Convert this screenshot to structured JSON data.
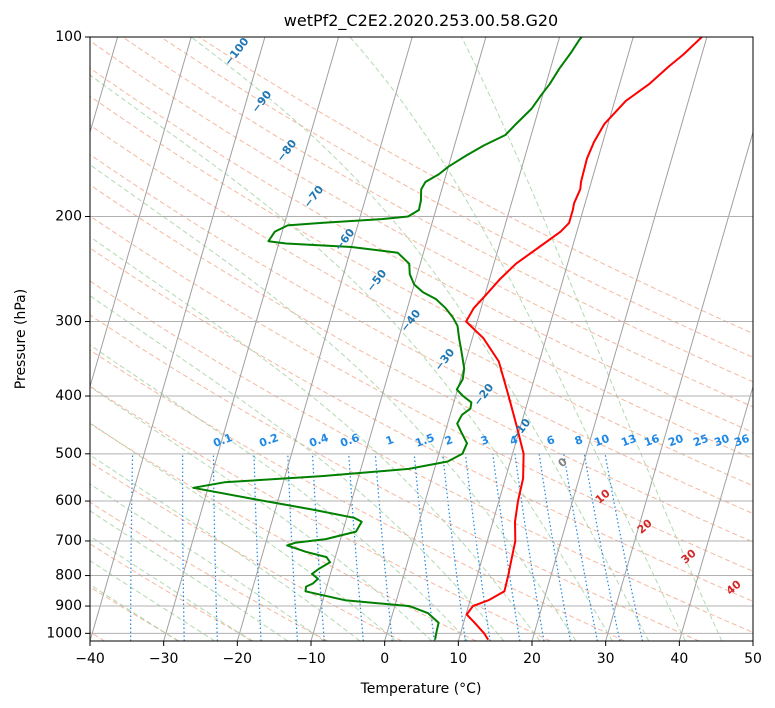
{
  "chart_data": {
    "type": "line",
    "title": "wetPf2_C2E2.2020.253.00.58.G20",
    "xlabel": "Temperature (°C)",
    "ylabel": "Pressure (hPa)",
    "xlim": [
      -40,
      50
    ],
    "ylim": [
      1030,
      100
    ],
    "y_scale": "log",
    "grid": true,
    "x_ticks": [
      -40,
      -30,
      -20,
      -10,
      0,
      10,
      20,
      30,
      40,
      50
    ],
    "y_ticks": [
      100,
      200,
      300,
      400,
      500,
      600,
      700,
      800,
      900,
      1000
    ],
    "x_tick_labels": [
      "−40",
      "−30",
      "−20",
      "−10",
      "0",
      "10",
      "20",
      "30",
      "40",
      "50"
    ],
    "y_tick_labels": [
      "100",
      "200",
      "300",
      "400",
      "500",
      "600",
      "700",
      "800",
      "900",
      "1000"
    ],
    "series": [
      {
        "color": "#ff0000",
        "points": [
          [
            14.0,
            1025
          ],
          [
            13.2,
            1000
          ],
          [
            11.5,
            960
          ],
          [
            10.1,
            930
          ],
          [
            10.6,
            900
          ],
          [
            12.5,
            880
          ],
          [
            14.3,
            850
          ],
          [
            14.2,
            800
          ],
          [
            14.0,
            750
          ],
          [
            13.8,
            700
          ],
          [
            13.0,
            650
          ],
          [
            12.6,
            600
          ],
          [
            12.4,
            550
          ],
          [
            11.5,
            500
          ],
          [
            9.5,
            450
          ],
          [
            7.2,
            400
          ],
          [
            4.5,
            350
          ],
          [
            1.5,
            320
          ],
          [
            -1.5,
            300
          ],
          [
            -1.0,
            285
          ],
          [
            0.2,
            270
          ],
          [
            1.4,
            255
          ],
          [
            3.0,
            240
          ],
          [
            5.5,
            225
          ],
          [
            7.8,
            212
          ],
          [
            8.6,
            205
          ],
          [
            8.6,
            195
          ],
          [
            8.5,
            190
          ],
          [
            8.8,
            180
          ],
          [
            8.6,
            175
          ],
          [
            8.5,
            160
          ],
          [
            8.8,
            150
          ],
          [
            9.5,
            140
          ],
          [
            11.5,
            128
          ],
          [
            14.0,
            120
          ],
          [
            16.0,
            112
          ],
          [
            17.5,
            107
          ],
          [
            19.3,
            100
          ]
        ]
      },
      {
        "color": "#008000",
        "points": [
          [
            6.8,
            1025
          ],
          [
            6.7,
            1000
          ],
          [
            6.6,
            960
          ],
          [
            4.8,
            925
          ],
          [
            2.0,
            900
          ],
          [
            -7.0,
            880
          ],
          [
            -12.7,
            850
          ],
          [
            -12.8,
            835
          ],
          [
            -12.0,
            825
          ],
          [
            -11.5,
            810
          ],
          [
            -12.5,
            795
          ],
          [
            -11.8,
            780
          ],
          [
            -10.5,
            760
          ],
          [
            -11.2,
            745
          ],
          [
            -14.2,
            730
          ],
          [
            -17.0,
            712
          ],
          [
            -16.0,
            705
          ],
          [
            -12.0,
            695
          ],
          [
            -8.2,
            675
          ],
          [
            -7.8,
            650
          ],
          [
            -9.0,
            640
          ],
          [
            -15.0,
            620
          ],
          [
            -23.5,
            595
          ],
          [
            -32.0,
            570
          ],
          [
            -28.0,
            558
          ],
          [
            -15.0,
            545
          ],
          [
            -3.5,
            530
          ],
          [
            1.5,
            515
          ],
          [
            3.2,
            500
          ],
          [
            3.4,
            480
          ],
          [
            2.2,
            460
          ],
          [
            1.3,
            445
          ],
          [
            1.6,
            430
          ],
          [
            2.5,
            420
          ],
          [
            2.4,
            410
          ],
          [
            1.0,
            400
          ],
          [
            -0.1,
            390
          ],
          [
            0.3,
            375
          ],
          [
            0.1,
            360
          ],
          [
            -0.8,
            340
          ],
          [
            -1.8,
            320
          ],
          [
            -2.5,
            305
          ],
          [
            -3.5,
            295
          ],
          [
            -4.8,
            285
          ],
          [
            -6.5,
            275
          ],
          [
            -8.5,
            268
          ],
          [
            -10.0,
            260
          ],
          [
            -11.0,
            250
          ],
          [
            -11.5,
            240
          ],
          [
            -13.5,
            230
          ],
          [
            -20.0,
            225
          ],
          [
            -29.0,
            222
          ],
          [
            -31.5,
            220
          ],
          [
            -31.0,
            212
          ],
          [
            -29.5,
            207
          ],
          [
            -25.0,
            205
          ],
          [
            -17.0,
            202
          ],
          [
            -13.5,
            200
          ],
          [
            -12.3,
            195
          ],
          [
            -12.4,
            188
          ],
          [
            -12.8,
            180
          ],
          [
            -12.5,
            175
          ],
          [
            -11.0,
            170
          ],
          [
            -10.0,
            165
          ],
          [
            -8.0,
            158
          ],
          [
            -6.0,
            152
          ],
          [
            -3.5,
            146
          ],
          [
            -2.5,
            140
          ],
          [
            -1.0,
            132
          ],
          [
            -0.2,
            125
          ],
          [
            0.5,
            120
          ],
          [
            1.2,
            113
          ],
          [
            2.2,
            106
          ],
          [
            2.8,
            101
          ],
          [
            3.0,
            100
          ]
        ]
      }
    ],
    "dry_adiabat_labels": [
      "−100",
      "−90",
      "−80",
      "−70",
      "−60",
      "−50",
      "−40",
      "−30",
      "−20",
      "−10"
    ],
    "mixing_ratio_labels": [
      "0.1",
      "0.2",
      "0.4",
      "0.6",
      "1",
      "1.5",
      "2",
      "3",
      "4",
      "6",
      "8",
      "10",
      "13",
      "16",
      "20",
      "25",
      "30",
      "36"
    ],
    "moist_adiabat_labels": [
      "0",
      "10",
      "20",
      "30",
      "40"
    ],
    "colors": {
      "temperature": "#ff0000",
      "dewpoint": "#008000",
      "dry_adiabat": "#f0a080",
      "moist_adiabat": "#9fcf9f",
      "mixing_ratio": "#1e88e5",
      "isotherm": "#a0a0a0",
      "label_dry": "#1f77b4",
      "label_mixing": "#1e88e5",
      "label_moist_neg": "#808080",
      "label_moist_pos": "#d62728"
    }
  }
}
